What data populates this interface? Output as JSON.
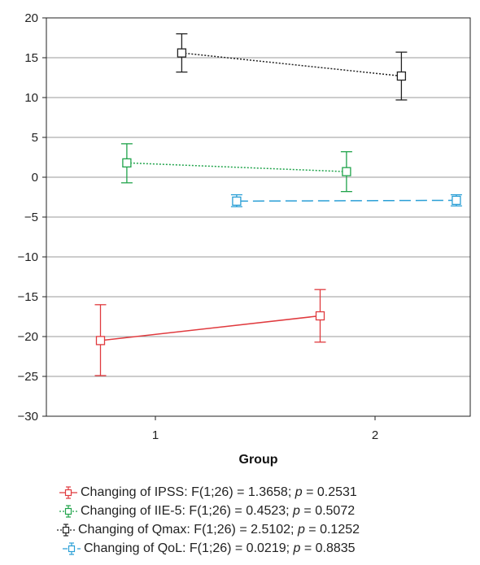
{
  "chart_data": {
    "type": "line",
    "xlabel": "Group",
    "categories": [
      "1",
      "2"
    ],
    "ylim": [
      -30,
      20
    ],
    "yticks": [
      20,
      15,
      10,
      5,
      0,
      -5,
      -10,
      -15,
      -20,
      -25,
      -30
    ],
    "ytick_labels": [
      "20",
      "15",
      "10",
      "5",
      "0",
      "−5",
      "−10",
      "−15",
      "−20",
      "−25",
      "−30"
    ],
    "grid": "horizontal",
    "legend_position": "bottom",
    "series": [
      {
        "name": "Changing of IPSS: F(1;26) = 1.3658; p = 0.2531",
        "legend_prefix": "Changing of IPSS: F(1;26) = 1.3658; ",
        "legend_p": "p",
        "legend_suffix": " = 0.2531",
        "color": "#e03a3e",
        "dash": "solid",
        "offset": -0.25,
        "means": [
          -20.5,
          -17.4
        ],
        "lower": [
          -24.9,
          -20.7
        ],
        "upper": [
          -16.0,
          -14.1
        ]
      },
      {
        "name": "Changing of IIE-5: F(1;26) = 0.4523; p = 0.5072",
        "legend_prefix": "Changing of IIE-5: F(1;26) = 0.4523; ",
        "legend_p": "p",
        "legend_suffix": " = 0.5072",
        "color": "#1fa34a",
        "dash": "dotted",
        "offset": -0.13,
        "means": [
          1.8,
          0.7
        ],
        "lower": [
          -0.7,
          -1.8
        ],
        "upper": [
          4.2,
          3.2
        ]
      },
      {
        "name": "Changing of Qmax: F(1;26) = 2.5102; p = 0.1252",
        "legend_prefix": "Changing of Qmax: F(1;26) = 2.5102; ",
        "legend_p": "p",
        "legend_suffix": " = 0.1252",
        "color": "#222222",
        "dash": "dotted",
        "offset": 0.12,
        "means": [
          15.6,
          12.7
        ],
        "lower": [
          13.2,
          9.7
        ],
        "upper": [
          18.0,
          15.7
        ]
      },
      {
        "name": "Changing of QoL: F(1;26) = 0.0219; p = 0.8835",
        "legend_prefix": "Changing of QoL: F(1;26) = 0.0219; ",
        "legend_p": "p",
        "legend_suffix": " = 0.8835",
        "color": "#2a9fd6",
        "dash": "dashed",
        "offset": 0.37,
        "means": [
          -3.0,
          -2.9
        ],
        "lower": [
          -3.7,
          -3.6
        ],
        "upper": [
          -2.2,
          -2.2
        ]
      }
    ]
  }
}
